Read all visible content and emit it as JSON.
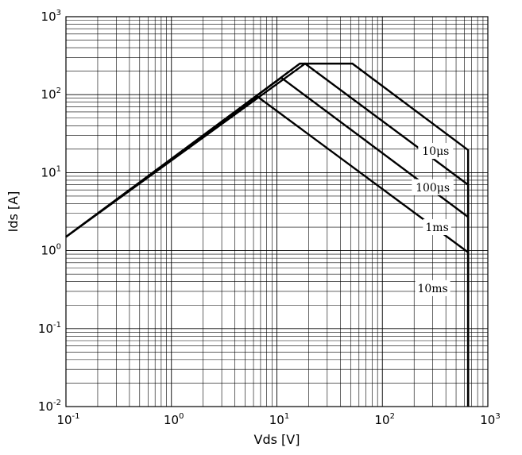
{
  "chart_data": {
    "type": "line",
    "title": "",
    "xlabel": "Vds [V]",
    "ylabel": "Ids [A]",
    "x_scale": "log",
    "y_scale": "log",
    "xlim": [
      0.1,
      1000
    ],
    "ylim": [
      0.01,
      1000
    ],
    "grid": "major and minor",
    "x_ticks": [
      {
        "base": "10",
        "exp": "-1",
        "value": 0.1
      },
      {
        "base": "10",
        "exp": "0",
        "value": 1
      },
      {
        "base": "10",
        "exp": "1",
        "value": 10
      },
      {
        "base": "10",
        "exp": "2",
        "value": 100
      },
      {
        "base": "10",
        "exp": "3",
        "value": 1000
      }
    ],
    "y_ticks": [
      {
        "base": "10",
        "exp": "-2",
        "value": 0.01
      },
      {
        "base": "10",
        "exp": "-1",
        "value": 0.1
      },
      {
        "base": "10",
        "exp": "0",
        "value": 1
      },
      {
        "base": "10",
        "exp": "1",
        "value": 10
      },
      {
        "base": "10",
        "exp": "2",
        "value": 100
      },
      {
        "base": "10",
        "exp": "3",
        "value": 1000
      }
    ],
    "series": [
      {
        "label": "10μs",
        "points": [
          [
            0.1,
            1.5
          ],
          [
            16.5,
            250
          ],
          [
            52,
            250
          ],
          [
            650,
            19.5
          ],
          [
            650,
            0.01
          ]
        ],
        "label_at": [
          320,
          19
        ]
      },
      {
        "label": "100μs",
        "points": [
          [
            0.1,
            1.5
          ],
          [
            18.5,
            250
          ],
          [
            650,
            7
          ],
          [
            650,
            0.01
          ]
        ],
        "label_at": [
          300,
          6.5
        ]
      },
      {
        "label": "1ms",
        "points": [
          [
            0.1,
            1.5
          ],
          [
            11,
            165
          ],
          [
            650,
            2.7
          ],
          [
            650,
            0.01
          ]
        ],
        "label_at": [
          330,
          2
        ]
      },
      {
        "label": "10ms",
        "points": [
          [
            0.1,
            1.5
          ],
          [
            6.5,
            95
          ],
          [
            650,
            0.95
          ],
          [
            650,
            0.01
          ]
        ],
        "label_at": [
          300,
          0.33
        ]
      }
    ]
  }
}
